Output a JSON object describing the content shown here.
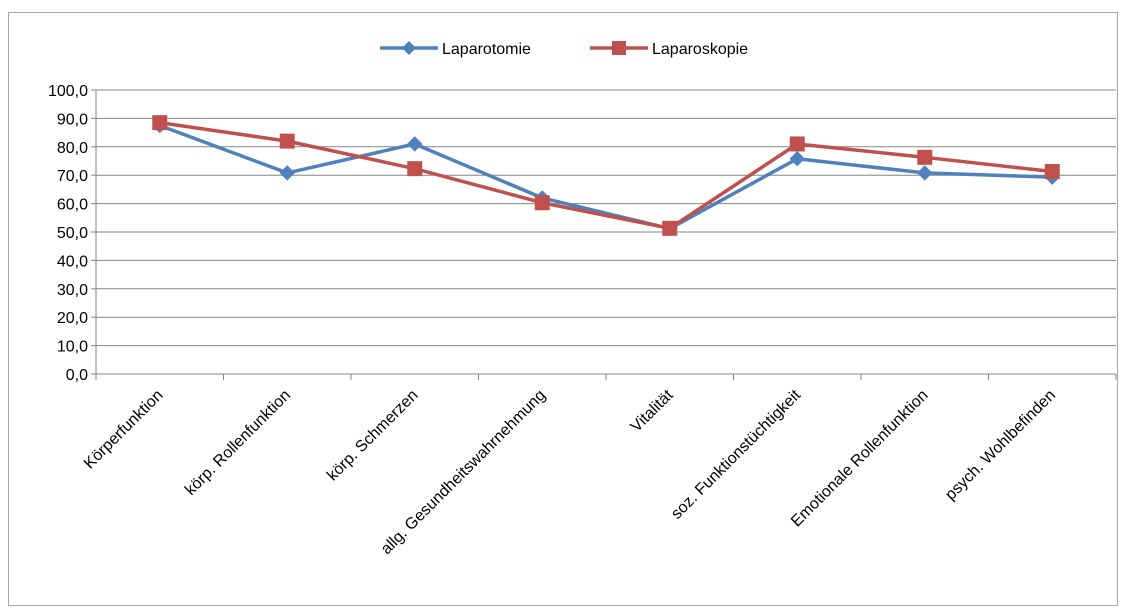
{
  "chart_data": {
    "type": "line",
    "title": "",
    "xlabel": "",
    "ylabel": "",
    "ylim": [
      0,
      100
    ],
    "ytick_step": 10,
    "ytick_labels": [
      "0,0",
      "10,0",
      "20,0",
      "30,0",
      "40,0",
      "50,0",
      "60,0",
      "70,0",
      "80,0",
      "90,0",
      "100,0"
    ],
    "grid": true,
    "legend_position": "top",
    "categories": [
      "Körperfunktion",
      "körp. Rollenfunktion",
      "körp. Schmerzen",
      "allg. Gesundheitswahrnehmung",
      "Vitalität",
      "soz. Funktionstüchtigkeit",
      "Emotionale Rollenfunktion",
      "psych. Wohlbefinden"
    ],
    "series": [
      {
        "name": "Laparotomie",
        "color": "#4f81bd",
        "marker": "diamond",
        "values": [
          87.5,
          70.8,
          81.0,
          62.0,
          51.2,
          75.8,
          70.8,
          69.3
        ]
      },
      {
        "name": "Laparoskopie",
        "color": "#c0504d",
        "marker": "square",
        "values": [
          88.5,
          82.0,
          72.3,
          60.3,
          51.3,
          81.0,
          76.3,
          71.3
        ]
      }
    ]
  }
}
